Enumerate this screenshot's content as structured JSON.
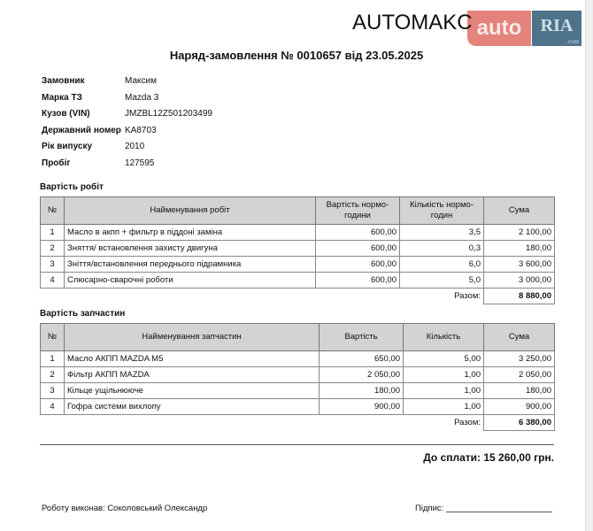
{
  "logo": {
    "brand": "AUTOMAKC",
    "auto": "auto",
    "ria": "RIA",
    "ria_com": ".com"
  },
  "title": "Наряд-замовлення № 0010657 від 23.05.2025",
  "info": [
    {
      "label": "Замовник",
      "value": "Максим"
    },
    {
      "label": "Марка ТЗ",
      "value": "Mazda 3"
    },
    {
      "label": "Кузов (VIN)",
      "value": "JMZBL12Z501203499"
    },
    {
      "label": "Державний номер",
      "value": "KA8703"
    },
    {
      "label": "Рік випуску",
      "value": "2010"
    },
    {
      "label": "Пробіг",
      "value": "127595"
    }
  ],
  "works": {
    "heading": "Вартість робіт",
    "headers": [
      "№",
      "Найменування робіт",
      "Вартість нормо-години",
      "Кількість нормо-годин",
      "Сума"
    ],
    "rows": [
      [
        "1",
        "Масло в акпп + фильтр в піддоні заміна",
        "600,00",
        "3,5",
        "2 100,00"
      ],
      [
        "2",
        "Зняття/ встановлення захисту двигуна",
        "600,00",
        "0,3",
        "180,00"
      ],
      [
        "3",
        "Зніття/встановлення переднього підрамника",
        "600,00",
        "6,0",
        "3 600,00"
      ],
      [
        "4",
        "Слюсарно-сварочні роботи",
        "600,00",
        "5,0",
        "3 000,00"
      ]
    ],
    "total_label": "Разом:",
    "total": "8 880,00"
  },
  "parts": {
    "heading": "Вартість запчастин",
    "headers": [
      "№",
      "Найменування запчастин",
      "Вартість",
      "Кількість",
      "Сума"
    ],
    "rows": [
      [
        "1",
        "Масло АКПП MAZDA M5",
        "650,00",
        "5,00",
        "3 250,00"
      ],
      [
        "2",
        "Фільтр АКПП MAZDA",
        "2 050,00",
        "1,00",
        "2 050,00"
      ],
      [
        "3",
        "Кільце ущільнююче",
        "180,00",
        "1,00",
        "180,00"
      ],
      [
        "4",
        "Гофра системи вихлопу",
        "900,00",
        "1,00",
        "900,00"
      ]
    ],
    "total_label": "Разом:",
    "total": "6 380,00"
  },
  "pay": "До сплати: 15 260,00 грн.",
  "footer": {
    "worker": "Роботу виконав: Соколовський Олександр",
    "signature": "Підпис:"
  }
}
